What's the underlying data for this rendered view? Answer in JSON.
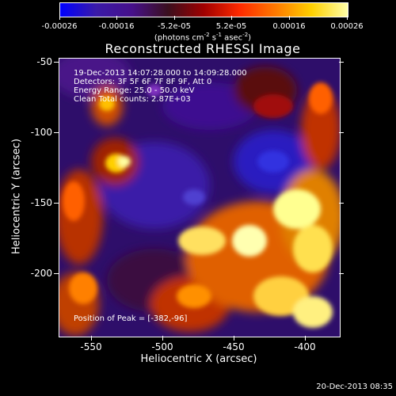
{
  "colorbar": {
    "tick_labels": [
      "-0.00026",
      "-0.00016",
      "-5.2e-05",
      "5.2e-05",
      "0.00016",
      "0.00026"
    ],
    "units_prefix": "(photons cm",
    "units_exp1": "-2",
    "units_mid1": " s",
    "units_exp2": "-1",
    "units_mid2": " asec",
    "units_exp3": "-2",
    "units_suffix": ")",
    "colors": [
      "#0000ff",
      "#3a1aa8",
      "#46108a",
      "#3a0f1e",
      "#a00000",
      "#ff2a00",
      "#ff7a00",
      "#ffd000",
      "#ffffa8"
    ]
  },
  "image": {
    "title": "Reconstructed RHESSI Image",
    "info_lines": [
      "19-Dec-2013 14:07:28.000 to 14:09:28.000",
      "Detectors: 3F 5F 6F 7F 8F 9F, Att 0",
      "Energy Range: 25.0 - 50.0 keV",
      "Clean     Total counts: 2.87E+03"
    ],
    "peak_text": "Position of Peak = [-382,-96]",
    "x_axis_title": "Heliocentric X (arcsec)",
    "y_axis_title": "Heliocentric Y (arcsec)",
    "x_ticks": [
      "-550",
      "-500",
      "-450",
      "-400"
    ],
    "y_ticks": [
      "-50",
      "-100",
      "-150",
      "-200"
    ],
    "timestamp": "20-Dec-2013 08:35"
  }
}
